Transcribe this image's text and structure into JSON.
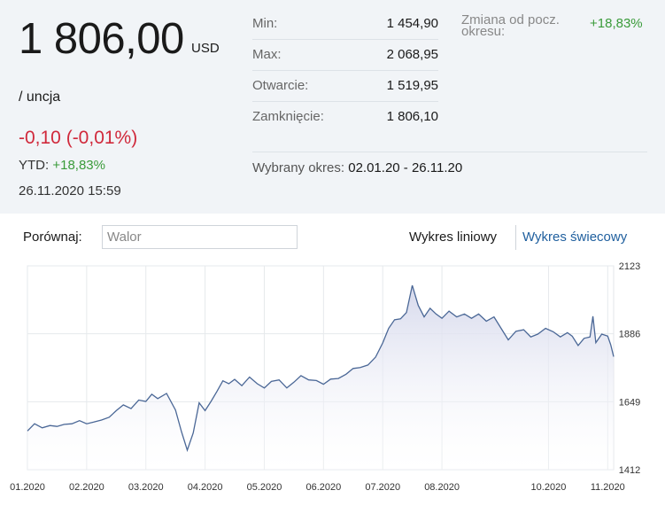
{
  "quote": {
    "price": "1 806,00",
    "currency": "USD",
    "unit": "/ uncja",
    "change": "-0,10 (-0,01%)",
    "ytd_label": "YTD:",
    "ytd_value": "+18,83%",
    "datetime": "26.11.2020 15:59"
  },
  "stats": [
    {
      "label": "Min:",
      "value": "1 454,90"
    },
    {
      "label": "Max:",
      "value": "2 068,95"
    },
    {
      "label": "Otwarcie:",
      "value": "1 519,95"
    },
    {
      "label": "Zamknięcie:",
      "value": "1 806,10"
    }
  ],
  "period_change": {
    "label": "Zmiana od pocz. okresu:",
    "value": "+18,83%"
  },
  "period": {
    "label": "Wybrany okres:",
    "value": "02.01.20 - 26.11.20"
  },
  "compare": {
    "label": "Porównaj:",
    "placeholder": "Walor"
  },
  "tabs": {
    "line": "Wykres liniowy",
    "candle": "Wykres świecowy"
  },
  "colors": {
    "line": "#4a6796",
    "area_top": "#d6d9ec",
    "negative": "#d0293b",
    "positive": "#3a9b3a",
    "link": "#1f5f9e"
  },
  "chart_data": {
    "type": "area",
    "xlabel": "",
    "ylabel": "",
    "x_tick_labels": [
      "01.2020",
      "02.2020",
      "03.2020",
      "04.2020",
      "05.2020",
      "06.2020",
      "07.2020",
      "08.2020",
      "10.2020",
      "11.2020"
    ],
    "x_tick_positions": [
      0,
      1,
      2,
      3,
      4,
      5,
      6,
      7,
      8.8,
      9.8
    ],
    "y_ticks": [
      2123,
      1886,
      1649,
      1412
    ],
    "ylim": [
      1412,
      2123
    ],
    "xlim": [
      0,
      9.9
    ],
    "grid": true,
    "series": [
      {
        "points": [
          [
            0.0,
            1547
          ],
          [
            0.12,
            1572
          ],
          [
            0.25,
            1558
          ],
          [
            0.38,
            1566
          ],
          [
            0.5,
            1563
          ],
          [
            0.62,
            1570
          ],
          [
            0.75,
            1572
          ],
          [
            0.88,
            1583
          ],
          [
            1.0,
            1572
          ],
          [
            1.12,
            1578
          ],
          [
            1.25,
            1585
          ],
          [
            1.38,
            1595
          ],
          [
            1.5,
            1618
          ],
          [
            1.62,
            1638
          ],
          [
            1.75,
            1625
          ],
          [
            1.88,
            1655
          ],
          [
            2.0,
            1650
          ],
          [
            2.1,
            1675
          ],
          [
            2.2,
            1660
          ],
          [
            2.35,
            1678
          ],
          [
            2.5,
            1620
          ],
          [
            2.6,
            1545
          ],
          [
            2.7,
            1480
          ],
          [
            2.8,
            1540
          ],
          [
            2.9,
            1645
          ],
          [
            3.0,
            1618
          ],
          [
            3.1,
            1650
          ],
          [
            3.2,
            1685
          ],
          [
            3.3,
            1722
          ],
          [
            3.4,
            1712
          ],
          [
            3.5,
            1727
          ],
          [
            3.62,
            1705
          ],
          [
            3.75,
            1735
          ],
          [
            3.88,
            1712
          ],
          [
            4.0,
            1697
          ],
          [
            4.12,
            1720
          ],
          [
            4.25,
            1725
          ],
          [
            4.38,
            1697
          ],
          [
            4.5,
            1717
          ],
          [
            4.62,
            1740
          ],
          [
            4.75,
            1725
          ],
          [
            4.88,
            1723
          ],
          [
            5.0,
            1710
          ],
          [
            5.12,
            1728
          ],
          [
            5.25,
            1730
          ],
          [
            5.38,
            1745
          ],
          [
            5.5,
            1765
          ],
          [
            5.62,
            1768
          ],
          [
            5.75,
            1777
          ],
          [
            5.88,
            1805
          ],
          [
            6.0,
            1854
          ],
          [
            6.1,
            1905
          ],
          [
            6.2,
            1935
          ],
          [
            6.3,
            1938
          ],
          [
            6.4,
            1960
          ],
          [
            6.5,
            2055
          ],
          [
            6.6,
            1985
          ],
          [
            6.7,
            1945
          ],
          [
            6.8,
            1975
          ],
          [
            6.9,
            1955
          ],
          [
            7.0,
            1940
          ],
          [
            7.12,
            1965
          ],
          [
            7.25,
            1945
          ],
          [
            7.38,
            1955
          ],
          [
            7.5,
            1940
          ],
          [
            7.62,
            1955
          ],
          [
            7.75,
            1930
          ],
          [
            7.88,
            1945
          ],
          [
            8.0,
            1905
          ],
          [
            8.12,
            1865
          ],
          [
            8.25,
            1895
          ],
          [
            8.38,
            1900
          ],
          [
            8.5,
            1875
          ],
          [
            8.62,
            1885
          ],
          [
            8.75,
            1905
          ],
          [
            8.88,
            1893
          ],
          [
            9.0,
            1875
          ],
          [
            9.12,
            1890
          ],
          [
            9.2,
            1878
          ],
          [
            9.3,
            1845
          ],
          [
            9.4,
            1870
          ],
          [
            9.5,
            1875
          ],
          [
            9.55,
            1947
          ],
          [
            9.6,
            1855
          ],
          [
            9.7,
            1885
          ],
          [
            9.8,
            1878
          ],
          [
            9.85,
            1848
          ],
          [
            9.9,
            1806
          ]
        ]
      }
    ]
  }
}
